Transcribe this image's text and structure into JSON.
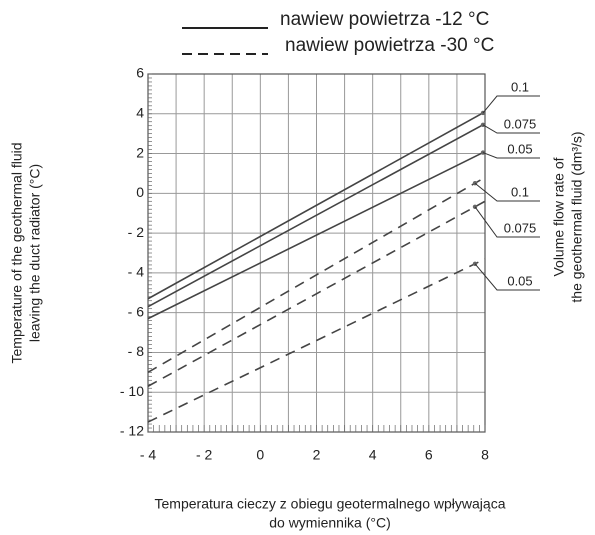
{
  "chart_data": {
    "type": "line",
    "legend": [
      {
        "label": "nawiew powietrza -12 °C",
        "dashed": false
      },
      {
        "label": "nawiew powietrza -30 °C",
        "dashed": true
      }
    ],
    "x": [
      -4,
      8
    ],
    "series": [
      {
        "name": "0.1",
        "color": "#444444",
        "dashed": false,
        "values": [
          -5.3,
          4.1
        ]
      },
      {
        "name": "0.075",
        "color": "#444444",
        "dashed": false,
        "values": [
          -5.7,
          3.5
        ]
      },
      {
        "name": "0.05",
        "color": "#444444",
        "dashed": false,
        "values": [
          -6.3,
          2.1
        ]
      },
      {
        "name": "0.1",
        "color": "#444444",
        "dashed": true,
        "values": [
          -9,
          0.8
        ]
      },
      {
        "name": "0.075",
        "color": "#444444",
        "dashed": true,
        "values": [
          -9.7,
          -0.4
        ]
      },
      {
        "name": "0.05",
        "color": "#444444",
        "dashed": true,
        "values": [
          -11.5,
          -3.3
        ]
      }
    ],
    "xlim": [
      -4,
      8
    ],
    "ylim": [
      -12,
      6
    ],
    "xticks": [
      {
        "value": -4,
        "label": "- 4"
      },
      {
        "value": -2,
        "label": "- 2"
      },
      0,
      2,
      4,
      6,
      8
    ],
    "xgrid": [
      -4,
      -3,
      -2,
      -1,
      0,
      1,
      2,
      3,
      4,
      5,
      6,
      7,
      8
    ],
    "yticks": [
      {
        "value": -12,
        "label": "- 12"
      },
      {
        "value": -10,
        "label": "- 10"
      },
      {
        "value": -8,
        "label": "- 8"
      },
      {
        "value": -6,
        "label": "- 6"
      },
      {
        "value": -4,
        "label": "- 4"
      },
      {
        "value": -2,
        "label": "- 2"
      },
      0,
      2,
      4,
      6
    ],
    "ylabel": [
      "Temperature of the geothermal fluid",
      "leaving the duct radiator (°C)"
    ],
    "y2label": [
      "Volume flow rate of",
      "the geothermal fluid (dm³/s)"
    ],
    "xlabel": [
      "Temperatura cieczy z obiegu geotermalnego wpływająca",
      "do wymiennika (°C)"
    ],
    "grid": true
  }
}
